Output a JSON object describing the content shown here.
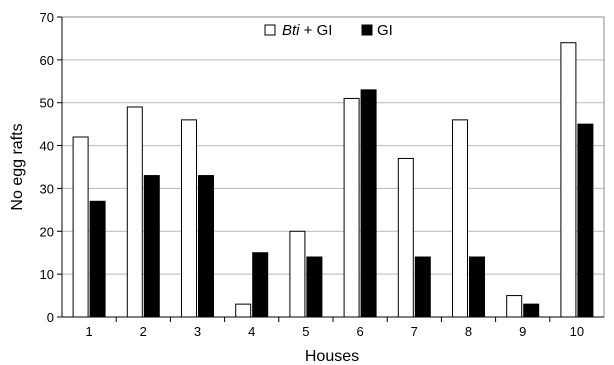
{
  "chart_data": {
    "type": "bar",
    "title": "",
    "xlabel": "Houses",
    "ylabel": "No egg rafts",
    "ylim": [
      0,
      70
    ],
    "yticks": [
      0,
      10,
      20,
      30,
      40,
      50,
      60,
      70
    ],
    "grid": true,
    "legend_position": "top-center",
    "categories": [
      "1",
      "2",
      "3",
      "4",
      "5",
      "6",
      "7",
      "8",
      "9",
      "10"
    ],
    "series": [
      {
        "name_italic": "Bti",
        "name_rest": " + GI",
        "color": "#ffffff",
        "values": [
          42,
          49,
          46,
          3,
          20,
          51,
          37,
          46,
          5,
          64
        ]
      },
      {
        "name": "GI",
        "color": "#000000",
        "values": [
          27,
          33,
          33,
          15,
          14,
          53,
          14,
          14,
          3,
          45
        ]
      }
    ]
  }
}
